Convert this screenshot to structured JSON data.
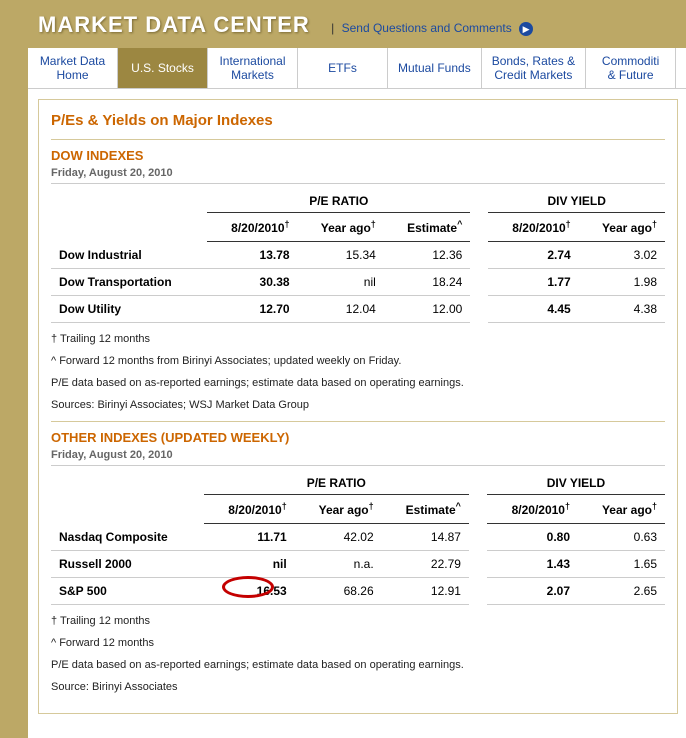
{
  "header": {
    "title": "MARKET DATA CENTER",
    "link_separator": "|",
    "link_text": "Send Questions and Comments",
    "link_icon_glyph": "▶"
  },
  "tabs": [
    {
      "label": "Market Data\nHome",
      "active": false
    },
    {
      "label": "U.S. Stocks",
      "active": true
    },
    {
      "label": "International\nMarkets",
      "active": false
    },
    {
      "label": "ETFs",
      "active": false
    },
    {
      "label": "Mutual Funds",
      "active": false
    },
    {
      "label": "Bonds, Rates &\nCredit Markets",
      "active": false
    },
    {
      "label": "Commoditi\n& Future",
      "active": false
    }
  ],
  "page_subtitle": "P/Es & Yields on Major Indexes",
  "group_headers": {
    "pe": "P/E RATIO",
    "div": "DIV YIELD"
  },
  "col_headers": {
    "current": "8/20/2010",
    "current_sup": "†",
    "year_ago": "Year ago",
    "year_ago_sup": "†",
    "estimate": "Estimate",
    "estimate_sup": "^"
  },
  "sections": [
    {
      "heading": "DOW INDEXES",
      "date": "Friday, August 20, 2010",
      "rows": [
        {
          "name": "Dow Industrial",
          "pe_cur": "13.78",
          "pe_ya": "15.34",
          "pe_est": "12.36",
          "dv_cur": "2.74",
          "dv_ya": "3.02"
        },
        {
          "name": "Dow Transportation",
          "pe_cur": "30.38",
          "pe_ya": "nil",
          "pe_est": "18.24",
          "dv_cur": "1.77",
          "dv_ya": "1.98"
        },
        {
          "name": "Dow Utility",
          "pe_cur": "12.70",
          "pe_ya": "12.04",
          "pe_est": "12.00",
          "dv_cur": "4.45",
          "dv_ya": "4.38"
        }
      ],
      "notes": [
        "† Trailing 12 months",
        "^ Forward 12 months from Birinyi Associates; updated weekly on Friday.",
        "P/E data based on as-reported earnings; estimate data based on operating earnings.",
        "Sources: Birinyi Associates; WSJ Market Data Group"
      ]
    },
    {
      "heading": "OTHER INDEXES (UPDATED WEEKLY)",
      "date": "Friday, August 20, 2010",
      "rows": [
        {
          "name": "Nasdaq Composite",
          "pe_cur": "11.71",
          "pe_ya": "42.02",
          "pe_est": "14.87",
          "dv_cur": "0.80",
          "dv_ya": "0.63"
        },
        {
          "name": "Russell 2000",
          "pe_cur": "nil",
          "pe_ya": "n.a.",
          "pe_est": "22.79",
          "dv_cur": "1.43",
          "dv_ya": "1.65"
        },
        {
          "name": "S&P 500",
          "pe_cur": "16.53",
          "pe_ya": "68.26",
          "pe_est": "12.91",
          "dv_cur": "2.07",
          "dv_ya": "2.65",
          "circle_pe_cur": true
        }
      ],
      "notes": [
        "† Trailing 12 months",
        "^ Forward 12 months",
        "P/E data based on as-reported earnings; estimate data based on operating earnings.",
        "Source: Birinyi Associates"
      ]
    }
  ],
  "colors": {
    "brand_bg": "#bca866",
    "brand_active": "#9c8741",
    "accent": "#cc6600",
    "link": "#1c4aa0",
    "annot": "#c40000"
  }
}
